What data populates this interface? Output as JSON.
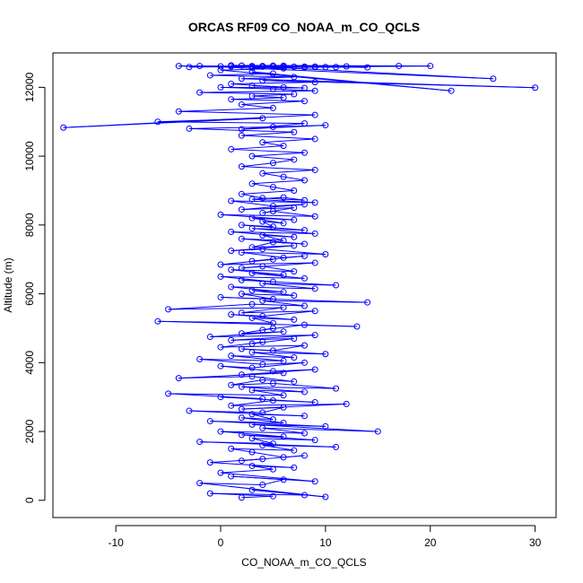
{
  "chart_data": {
    "type": "scatter",
    "title": "ORCAS RF09 CO_NOAA_m_CO_QCLS",
    "xlabel": "CO_NOAA_m_CO_QCLS",
    "ylabel": "Altitude (m)",
    "xlim": [
      -16,
      32
    ],
    "ylim": [
      -500,
      13000
    ],
    "xticks": [
      -10,
      0,
      10,
      20,
      30
    ],
    "yticks": [
      0,
      2000,
      4000,
      6000,
      8000,
      10000,
      12000
    ],
    "grid": false,
    "legend": "none",
    "series": [
      {
        "style": "points-and-lines",
        "color": "#0000ff",
        "x": [
          2,
          5,
          -1,
          8,
          3,
          10,
          -2,
          4,
          6,
          1,
          9,
          0,
          5,
          3,
          7,
          -1,
          4,
          2,
          8,
          6,
          3,
          1,
          7,
          4,
          11,
          -2,
          5,
          3,
          9,
          2,
          6,
          0,
          8,
          4,
          15,
          3,
          10,
          -1,
          6,
          2,
          5,
          3,
          8,
          -3,
          4,
          6,
          2,
          12,
          1,
          5,
          9,
          0,
          4,
          -5,
          6,
          3,
          8,
          2,
          11,
          5,
          1,
          4,
          7,
          3,
          -4,
          6,
          2,
          9,
          5,
          0,
          3,
          8,
          4,
          -2,
          6,
          1,
          7,
          3,
          10,
          2,
          5,
          8,
          0,
          4,
          3,
          7,
          1,
          9,
          -1,
          6,
          2,
          5,
          4,
          8,
          13,
          -6,
          5,
          3,
          7,
          1,
          4,
          9,
          2,
          6,
          -5,
          3,
          8,
          4,
          14,
          0,
          5,
          2,
          7,
          3,
          6,
          1,
          9,
          4,
          11,
          2,
          5,
          0,
          8,
          3,
          6,
          1,
          7,
          4,
          2,
          9,
          0,
          5,
          3,
          8,
          6,
          2,
          10,
          4,
          1,
          7,
          3,
          5,
          8,
          2,
          6,
          4,
          7,
          1,
          9,
          3,
          8,
          2,
          5,
          4,
          6,
          3,
          7,
          0,
          9,
          5,
          4,
          7,
          2,
          8,
          5,
          1,
          9,
          3,
          6,
          8,
          4,
          2,
          7,
          5,
          3,
          8,
          6,
          4,
          9,
          2,
          5,
          7,
          3,
          8,
          1,
          6,
          4,
          9,
          2,
          7,
          -3,
          5,
          10,
          2,
          8,
          -6,
          4,
          -15,
          9,
          -4,
          5,
          2,
          8,
          1,
          6,
          3,
          7,
          -2,
          9,
          5,
          0,
          8,
          3,
          6,
          1,
          9,
          4,
          30,
          2,
          7,
          -1,
          5,
          3,
          22,
          0,
          6,
          4,
          26,
          -2,
          8,
          12,
          -3,
          5,
          9,
          3,
          20,
          1,
          6,
          14,
          4,
          -4,
          8,
          2,
          11,
          5,
          17,
          3,
          6,
          9,
          0,
          7,
          4,
          10,
          2,
          5,
          8,
          3,
          6,
          1,
          9
        ],
        "y": [
          80,
          120,
          200,
          150,
          300,
          100,
          500,
          450,
          600,
          700,
          550,
          800,
          900,
          1000,
          950,
          1100,
          1200,
          1150,
          1300,
          1250,
          1400,
          1500,
          1450,
          1600,
          1550,
          1700,
          1650,
          1800,
          1750,
          1900,
          1850,
          2000,
          1950,
          2100,
          2000,
          2200,
          2150,
          2300,
          2250,
          2400,
          2350,
          2500,
          2450,
          2600,
          2550,
          2700,
          2650,
          2800,
          2750,
          2900,
          2850,
          3000,
          2950,
          3100,
          3050,
          3200,
          3150,
          3300,
          3250,
          3400,
          3350,
          3500,
          3450,
          3600,
          3550,
          3700,
          3650,
          3800,
          3750,
          3900,
          3850,
          4000,
          3950,
          4100,
          4050,
          4200,
          4150,
          4300,
          4250,
          4400,
          4350,
          4500,
          4450,
          4600,
          4550,
          4700,
          4650,
          4800,
          4750,
          4900,
          4850,
          5000,
          4950,
          5100,
          5050,
          5200,
          5150,
          5300,
          5250,
          5400,
          5350,
          5500,
          5450,
          5600,
          5550,
          5700,
          5650,
          5800,
          5750,
          5900,
          5850,
          6000,
          5950,
          6100,
          6050,
          6200,
          6150,
          6300,
          6250,
          6400,
          6350,
          6500,
          6450,
          6600,
          6550,
          6700,
          6650,
          6800,
          6750,
          6900,
          6850,
          7000,
          6950,
          7100,
          7050,
          7200,
          7150,
          7300,
          7250,
          7400,
          7350,
          7500,
          7450,
          7600,
          7550,
          7700,
          7650,
          7800,
          7750,
          7900,
          7850,
          8000,
          7950,
          8100,
          8050,
          8200,
          8150,
          8300,
          8250,
          8400,
          8350,
          8500,
          8450,
          8600,
          8550,
          8700,
          8650,
          8750,
          8800,
          8720,
          8780,
          8900,
          9000,
          9100,
          9200,
          9300,
          9400,
          9500,
          9600,
          9700,
          9800,
          9900,
          10000,
          10100,
          10200,
          10300,
          10400,
          10500,
          10600,
          10700,
          10800,
          10850,
          10900,
          10780,
          10950,
          11000,
          11100,
          10830,
          11200,
          11300,
          11400,
          11500,
          11600,
          11650,
          11700,
          11750,
          11800,
          11850,
          11900,
          11950,
          12000,
          11980,
          12050,
          12000,
          12100,
          12150,
          12200,
          11990,
          12250,
          12300,
          12350,
          12400,
          12450,
          11900,
          12500,
          12550,
          12600,
          12250,
          12620,
          12580,
          12610,
          12590,
          12630,
          12600,
          12570,
          12620,
          12640,
          12600,
          12580,
          12610,
          12620,
          12600,
          12630,
          12590,
          12610,
          12620,
          12600,
          12630,
          12590,
          12610,
          12600,
          12620,
          12590,
          12630,
          12610,
          12600,
          12620,
          12590,
          12610,
          12600
        ]
      }
    ]
  }
}
